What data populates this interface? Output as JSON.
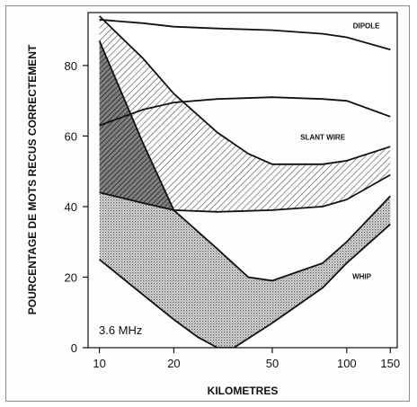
{
  "chart_data": {
    "type": "area",
    "title": "",
    "xlabel": "KILOMETRES",
    "ylabel": "POURCENTAGE DE MOTS RECUS CORRECTEMENT",
    "x_scale": "log",
    "xlim": [
      9,
      160
    ],
    "ylim": [
      0,
      95
    ],
    "x_ticks": [
      10,
      20,
      50,
      100,
      150
    ],
    "x_tick_labels": [
      "10",
      "20",
      "50",
      "100",
      "150"
    ],
    "y_ticks": [
      0,
      20,
      40,
      60,
      80
    ],
    "y_tick_labels": [
      "0",
      "20",
      "40",
      "60",
      "80"
    ],
    "annotation": "3.6 MHz",
    "grid": false,
    "legend": "none",
    "series": [
      {
        "name": "DIPOLE",
        "upper": {
          "x": [
            10,
            15,
            20,
            30,
            50,
            80,
            100,
            150
          ],
          "y": [
            93,
            92,
            91,
            90.5,
            90,
            89,
            88,
            84.5
          ]
        },
        "lower": {
          "x": [
            10,
            15,
            20,
            30,
            50,
            80,
            100,
            150
          ],
          "y": [
            63,
            67.5,
            69.5,
            70.5,
            71,
            70.5,
            70,
            65.5
          ]
        }
      },
      {
        "name": "SLANT WIRE",
        "upper": {
          "x": [
            10,
            15,
            20,
            30,
            40,
            50,
            80,
            100,
            150
          ],
          "y": [
            94,
            82,
            72,
            61,
            55,
            52,
            52,
            53,
            57
          ]
        },
        "lower": {
          "x": [
            10,
            15,
            20,
            30,
            50,
            80,
            100,
            150
          ],
          "y": [
            44,
            41,
            39,
            38.5,
            39,
            40,
            42,
            49
          ]
        }
      },
      {
        "name": "WHIP",
        "upper": {
          "x": [
            10,
            15,
            20,
            30,
            40,
            50,
            80,
            100,
            150
          ],
          "y": [
            87,
            58,
            39,
            28,
            20,
            19,
            24,
            30,
            43
          ]
        },
        "lower": {
          "x": [
            10,
            15,
            20,
            25,
            30,
            35,
            50,
            80,
            100,
            150
          ],
          "y": [
            25,
            15,
            8,
            3,
            0,
            0,
            7,
            17,
            24,
            35
          ]
        }
      }
    ]
  }
}
